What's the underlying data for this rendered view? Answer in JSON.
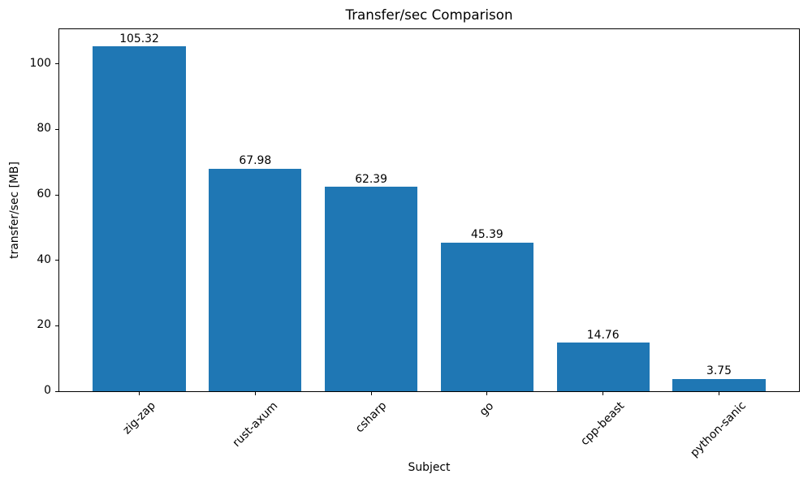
{
  "chart_data": {
    "type": "bar",
    "title": "Transfer/sec Comparison",
    "xlabel": "Subject",
    "ylabel": "transfer/sec [MB]",
    "categories": [
      "zig-zap",
      "rust-axum",
      "csharp",
      "go",
      "cpp-beast",
      "python-sanic"
    ],
    "values": [
      105.32,
      67.98,
      62.39,
      45.39,
      14.76,
      3.75
    ],
    "bar_value_labels": [
      "105.32",
      "67.98",
      "62.39",
      "45.39",
      "14.76",
      "3.75"
    ],
    "yticks": [
      0,
      20,
      40,
      60,
      80,
      100
    ],
    "ylim": [
      0,
      110.586
    ],
    "xtick_rotation_deg": 45,
    "bar_width_fraction": 0.8,
    "bar_color": "#1f77b4",
    "axis_color": "#000000",
    "text_color": "#000000",
    "background_color": "#ffffff",
    "grid": false,
    "legend": null
  }
}
